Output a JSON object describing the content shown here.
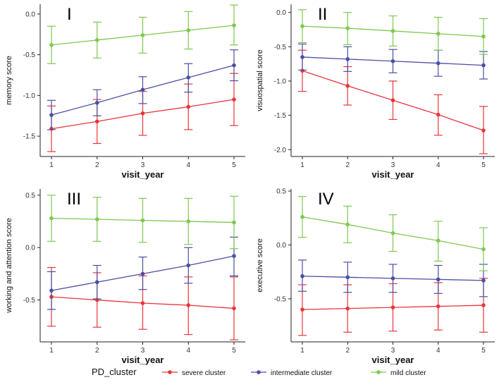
{
  "chart_data": [
    {
      "type": "line",
      "panel_label": "I",
      "xlabel": "visit_year",
      "ylabel": "memory score",
      "x": [
        1,
        2,
        3,
        4,
        5
      ],
      "ylim": [
        -1.75,
        0.12
      ],
      "yticks": [
        0.0,
        -0.5,
        -1.0,
        -1.5
      ],
      "ytick_labels": [
        "0.0",
        "-0.5",
        "-1.0",
        "-1.5"
      ],
      "series": [
        {
          "name": "severe cluster",
          "color": "#e8353b",
          "values": [
            -1.41,
            -1.32,
            -1.22,
            -1.14,
            -1.05
          ],
          "lower": [
            -1.69,
            -1.59,
            -1.49,
            -1.42,
            -1.37
          ],
          "upper": [
            -1.13,
            -1.05,
            -0.95,
            -0.86,
            -0.73
          ]
        },
        {
          "name": "intermediate cluster",
          "color": "#4a4fa3",
          "values": [
            -1.24,
            -1.09,
            -0.93,
            -0.78,
            -0.63
          ],
          "lower": [
            -1.42,
            -1.25,
            -1.1,
            -0.96,
            -0.82
          ],
          "upper": [
            -1.06,
            -0.93,
            -0.77,
            -0.61,
            -0.44
          ]
        },
        {
          "name": "mild cluster",
          "color": "#7ec850",
          "values": [
            -0.38,
            -0.32,
            -0.26,
            -0.2,
            -0.14
          ],
          "lower": [
            -0.61,
            -0.54,
            -0.48,
            -0.43,
            -0.38
          ],
          "upper": [
            -0.15,
            -0.1,
            -0.04,
            0.03,
            0.11
          ]
        }
      ]
    },
    {
      "type": "line",
      "panel_label": "II",
      "xlabel": "visit_year",
      "ylabel": "visuospatial score",
      "x": [
        1,
        2,
        3,
        4,
        5
      ],
      "ylim": [
        -2.1,
        0.12
      ],
      "yticks": [
        0.0,
        -0.5,
        -1.0,
        -1.5,
        -2.0
      ],
      "ytick_labels": [
        "0.0",
        "-0.5",
        "-1.0",
        "-1.5",
        "-2.0"
      ],
      "series": [
        {
          "name": "severe cluster",
          "color": "#e8353b",
          "values": [
            -0.85,
            -1.07,
            -1.28,
            -1.49,
            -1.72
          ],
          "lower": [
            -1.15,
            -1.35,
            -1.56,
            -1.79,
            -2.06
          ],
          "upper": [
            -0.55,
            -0.79,
            -1.0,
            -1.2,
            -1.37
          ]
        },
        {
          "name": "intermediate cluster",
          "color": "#4a4fa3",
          "values": [
            -0.65,
            -0.68,
            -0.71,
            -0.74,
            -0.77
          ],
          "lower": [
            -0.84,
            -0.86,
            -0.88,
            -0.93,
            -0.97
          ],
          "upper": [
            -0.46,
            -0.5,
            -0.54,
            -0.55,
            -0.57
          ]
        },
        {
          "name": "mild cluster",
          "color": "#7ec850",
          "values": [
            -0.2,
            -0.23,
            -0.27,
            -0.31,
            -0.35
          ],
          "lower": [
            -0.44,
            -0.47,
            -0.49,
            -0.55,
            -0.61
          ],
          "upper": [
            0.04,
            0.0,
            -0.05,
            -0.07,
            -0.09
          ]
        }
      ]
    },
    {
      "type": "line",
      "panel_label": "III",
      "xlabel": "visit_year",
      "ylabel": "working and attention score",
      "x": [
        1,
        2,
        3,
        4,
        5
      ],
      "ylim": [
        -0.9,
        0.56
      ],
      "yticks": [
        0.5,
        0.0,
        -0.5
      ],
      "ytick_labels": [
        "0.5",
        "0.0",
        "-0.5"
      ],
      "series": [
        {
          "name": "severe cluster",
          "color": "#e8353b",
          "values": [
            -0.47,
            -0.5,
            -0.53,
            -0.55,
            -0.58
          ],
          "lower": [
            -0.75,
            -0.76,
            -0.78,
            -0.83,
            -0.88
          ],
          "upper": [
            -0.19,
            -0.24,
            -0.27,
            -0.28,
            -0.28
          ]
        },
        {
          "name": "intermediate cluster",
          "color": "#4a4fa3",
          "values": [
            -0.41,
            -0.33,
            -0.25,
            -0.17,
            -0.08
          ],
          "lower": [
            -0.59,
            -0.49,
            -0.4,
            -0.34,
            -0.27
          ],
          "upper": [
            -0.23,
            -0.17,
            -0.09,
            0.0,
            0.1
          ]
        },
        {
          "name": "mild cluster",
          "color": "#7ec850",
          "values": [
            0.28,
            0.27,
            0.26,
            0.25,
            0.24
          ],
          "lower": [
            0.06,
            0.06,
            0.05,
            0.03,
            -0.01
          ],
          "upper": [
            0.5,
            0.48,
            0.47,
            0.47,
            0.49
          ]
        }
      ]
    },
    {
      "type": "line",
      "panel_label": "IV",
      "xlabel": "visit_year",
      "ylabel": "executive score",
      "x": [
        1,
        2,
        3,
        4,
        5
      ],
      "ylim": [
        -0.9,
        0.52
      ],
      "yticks": [
        0.5,
        0.0,
        -0.5
      ],
      "ytick_labels": [
        "0.5",
        "0.0",
        "-0.5"
      ],
      "series": [
        {
          "name": "severe cluster",
          "color": "#e8353b",
          "values": [
            -0.6,
            -0.59,
            -0.58,
            -0.57,
            -0.56
          ],
          "lower": [
            -0.84,
            -0.81,
            -0.8,
            -0.79,
            -0.81
          ],
          "upper": [
            -0.37,
            -0.37,
            -0.36,
            -0.35,
            -0.31
          ]
        },
        {
          "name": "intermediate cluster",
          "color": "#4a4fa3",
          "values": [
            -0.29,
            -0.3,
            -0.31,
            -0.32,
            -0.33
          ],
          "lower": [
            -0.43,
            -0.44,
            -0.44,
            -0.45,
            -0.48
          ],
          "upper": [
            -0.14,
            -0.16,
            -0.18,
            -0.19,
            -0.18
          ]
        },
        {
          "name": "mild cluster",
          "color": "#7ec850",
          "values": [
            0.26,
            0.19,
            0.11,
            0.04,
            -0.04
          ],
          "lower": [
            0.07,
            0.02,
            -0.06,
            -0.15,
            -0.24
          ],
          "upper": [
            0.45,
            0.36,
            0.28,
            0.22,
            0.16
          ]
        }
      ]
    }
  ],
  "legend": {
    "title": "PD_cluster",
    "items": [
      {
        "label": "severe cluster",
        "color": "#e8353b"
      },
      {
        "label": "intermediate cluster",
        "color": "#4a4fa3"
      },
      {
        "label": "mild cluster",
        "color": "#7ec850"
      }
    ]
  }
}
